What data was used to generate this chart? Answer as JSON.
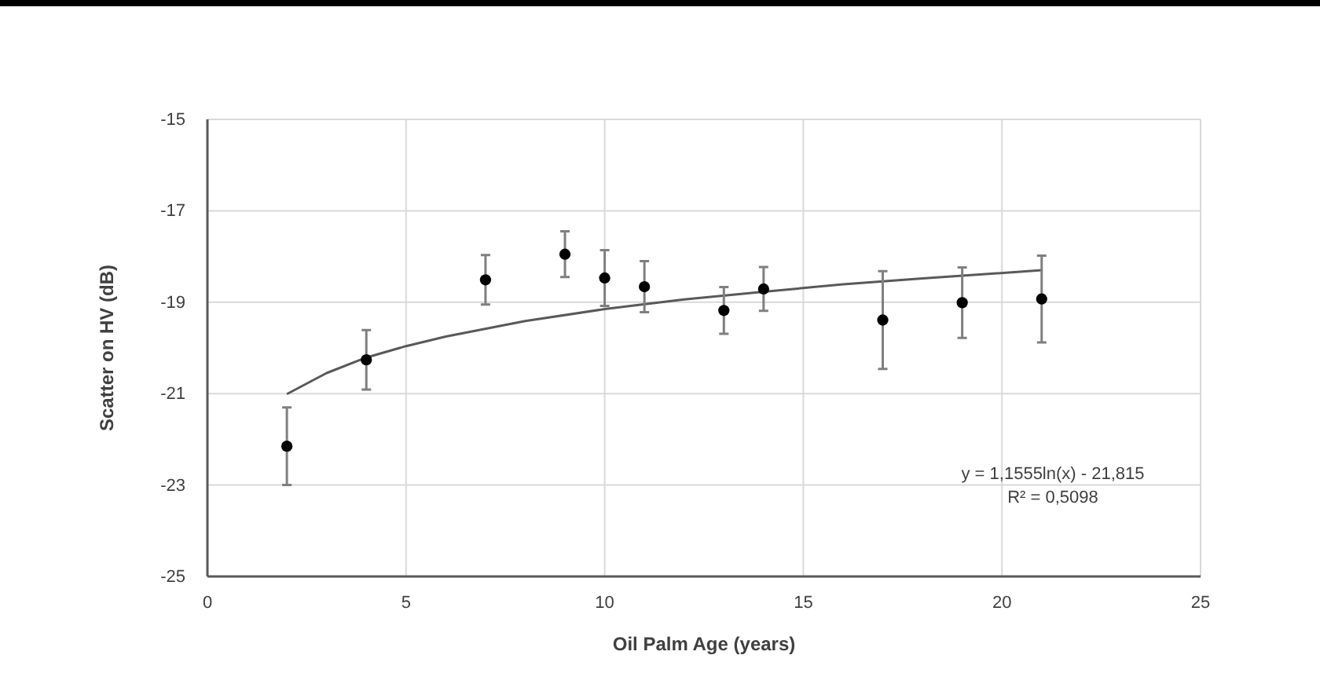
{
  "chart_data": {
    "type": "scatter",
    "xlabel": "Oil Palm Age (years)",
    "ylabel": "Scatter on HV (dB)",
    "xlim": [
      0,
      25
    ],
    "xticks": [
      0,
      5,
      10,
      15,
      20,
      25
    ],
    "ylim": [
      -25,
      -15
    ],
    "yticks": [
      -25,
      -23,
      -21,
      -19,
      -17,
      -15
    ],
    "grid": true,
    "series": [
      {
        "color": "#000000",
        "marker": "circle",
        "x": [
          2,
          4,
          7,
          9,
          10,
          11,
          13,
          14,
          17,
          19,
          21
        ],
        "values": [
          -22.15,
          -20.26,
          -18.51,
          -17.95,
          -18.47,
          -18.66,
          -19.18,
          -18.71,
          -19.39,
          -19.01,
          -18.93
        ],
        "errors": [
          0.85,
          0.65,
          0.54,
          0.5,
          0.61,
          0.56,
          0.51,
          0.48,
          1.07,
          0.77,
          0.95
        ]
      },
      {
        "type": "line",
        "color": "#595959",
        "marker": "none",
        "x": [
          2,
          3,
          4,
          5,
          6,
          8,
          10,
          12,
          14,
          16,
          18,
          21
        ],
        "values": [
          -21.01,
          -20.55,
          -20.21,
          -19.96,
          -19.75,
          -19.41,
          -19.15,
          -18.94,
          -18.77,
          -18.61,
          -18.48,
          -18.3
        ]
      }
    ],
    "annotations": [
      "y = 1,1555ln(x) - 21,815",
      "R² = 0,5098"
    ]
  }
}
